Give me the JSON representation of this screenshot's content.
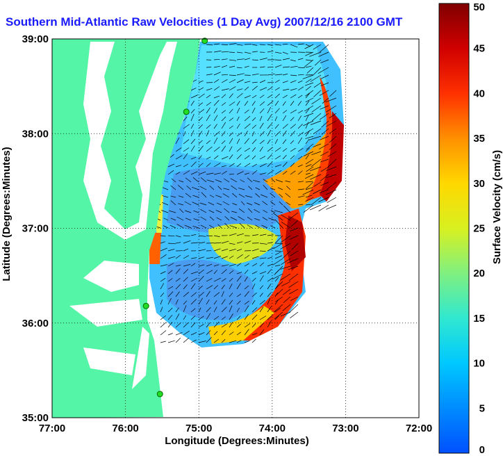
{
  "title": "Southern Mid-Atlantic Raw Velocities (1 Day Avg) 2007/12/16 2100 GMT",
  "map": {
    "xlabel": "Longitude (Degrees:Minutes)",
    "ylabel": "Latitude (Degrees:Minutes)",
    "x_ticks": [
      "77:00",
      "76:00",
      "75:00",
      "74:00",
      "73:00",
      "72:00"
    ],
    "y_ticks": [
      "39:00",
      "38:00",
      "37:00",
      "36:00",
      "35:00"
    ],
    "lon_range": [
      -77,
      -72
    ],
    "lat_range": [
      35,
      39
    ],
    "land_color": "#55f5a8",
    "radar_sites": [
      {
        "lon": -74.92,
        "lat": 38.98
      },
      {
        "lon": -75.17,
        "lat": 38.23
      },
      {
        "lon": -75.72,
        "lat": 36.18
      },
      {
        "lon": -75.53,
        "lat": 35.25
      }
    ]
  },
  "colorbar": {
    "label": "Surface Velocity (cm/s)",
    "ticks": [
      "50",
      "45",
      "40",
      "35",
      "30",
      "25",
      "20",
      "15",
      "10",
      "5",
      "0"
    ],
    "min": 0,
    "max": 50
  }
}
